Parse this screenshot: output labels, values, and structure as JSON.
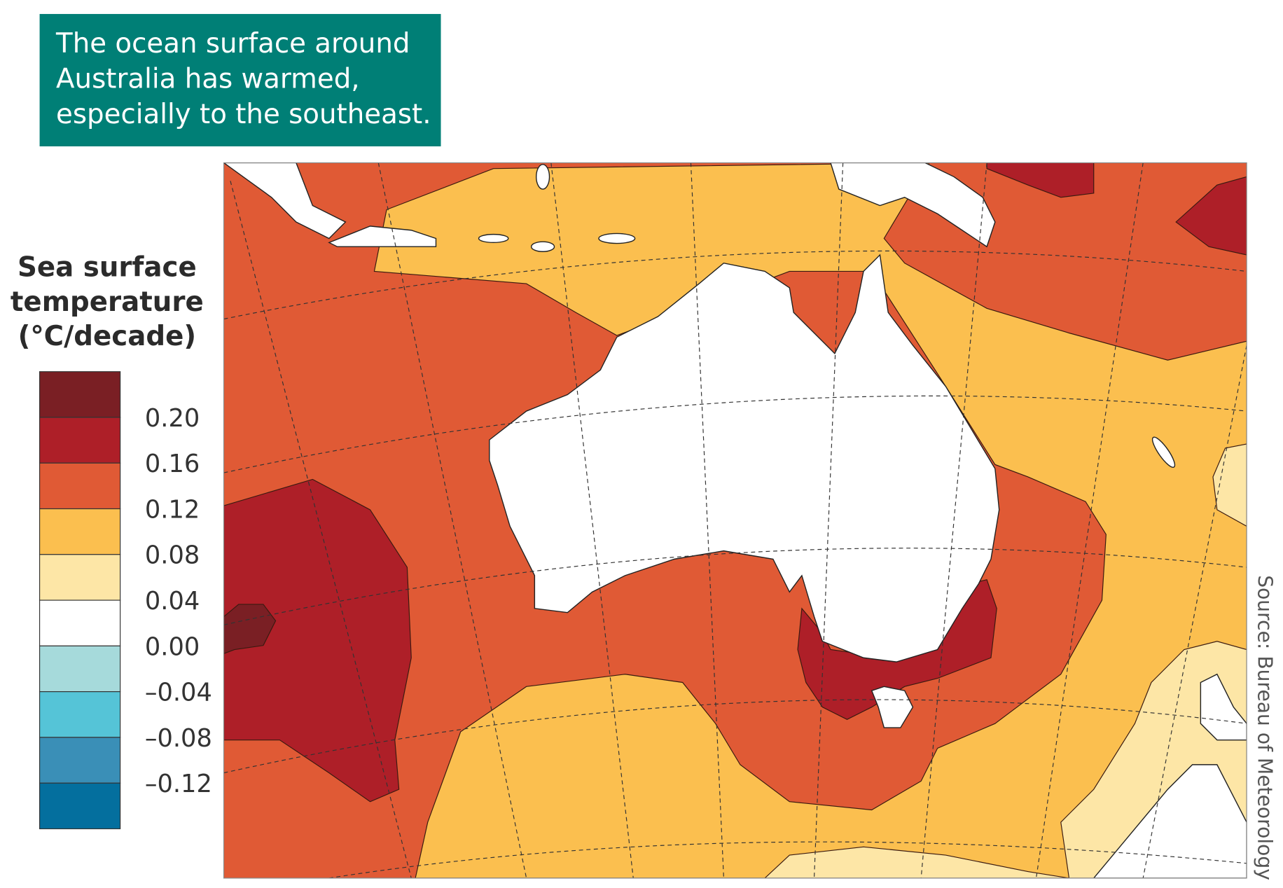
{
  "callout": {
    "lines": [
      "The ocean surface around",
      "Australia has warmed,",
      "especially to the southeast."
    ]
  },
  "legend": {
    "title_lines": [
      "Sea surface",
      "temperature",
      "(°C/decade)"
    ],
    "colors": [
      "#7a1f24",
      "#ae1f28",
      "#e05a35",
      "#fbbf4f",
      "#fde6a6",
      "#ffffff",
      "#a6dadb",
      "#55c4d7",
      "#3a8fb7",
      "#046f9e"
    ],
    "labels": [
      "0.20",
      "0.16",
      "0.12",
      "0.08",
      "0.04",
      "0.00",
      "–0.04",
      "–0.08",
      "–0.12"
    ]
  },
  "source": "Source: Bureau of Meteorology"
}
